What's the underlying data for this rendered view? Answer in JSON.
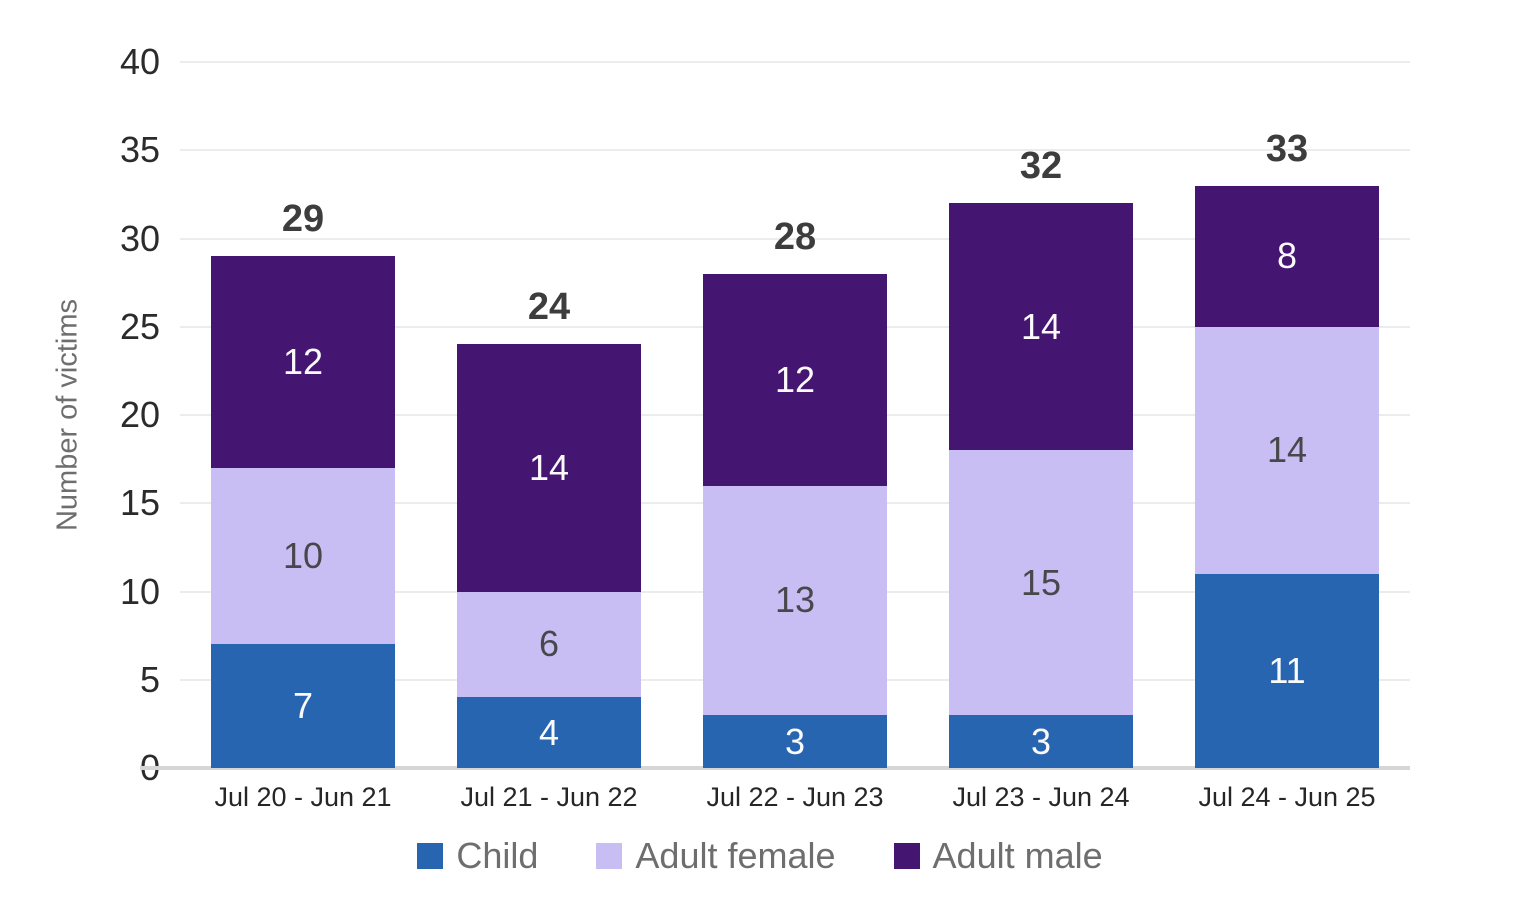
{
  "chart_data": {
    "type": "bar",
    "stacked": true,
    "title": "",
    "xlabel": "",
    "ylabel": "Number of victims",
    "ylim": [
      0,
      40
    ],
    "yticks": [
      0,
      5,
      10,
      15,
      20,
      25,
      30,
      35,
      40
    ],
    "grid": true,
    "legend_position": "bottom",
    "categories": [
      "Jul 20 - Jun 21",
      "Jul 21 - Jun 22",
      "Jul 22 - Jun 23",
      "Jul 23 - Jun 24",
      "Jul 24 - Jun 25"
    ],
    "series": [
      {
        "name": "Child",
        "color": "#2865b0",
        "label_color": "#fafafa",
        "values": [
          7,
          4,
          3,
          3,
          11
        ]
      },
      {
        "name": "Adult female",
        "color": "#c9bef3",
        "label_color": "#47484c",
        "values": [
          10,
          6,
          13,
          15,
          14
        ]
      },
      {
        "name": "Adult male",
        "color": "#451572",
        "label_color": "#fafafa",
        "values": [
          12,
          14,
          12,
          14,
          8
        ]
      }
    ],
    "totals": [
      29,
      24,
      28,
      32,
      33
    ]
  },
  "colors": {
    "gridline": "#ececec",
    "baseline": "#d6d6d6",
    "tick_label": "#2b2b2b",
    "total_label": "#3d3d3d",
    "axis_title": "#6e6e6e",
    "legend_text": "#6e6e6e",
    "background": "#ffffff"
  }
}
